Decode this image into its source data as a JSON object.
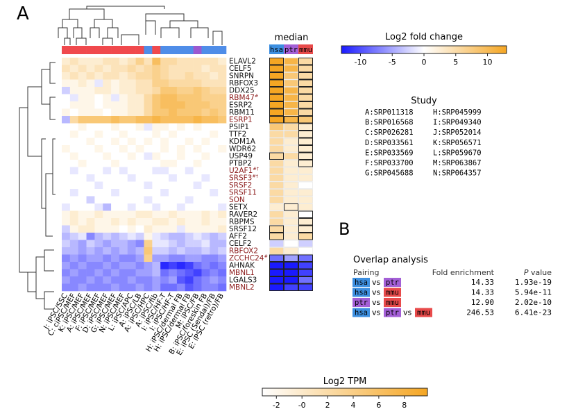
{
  "panel_a_label": "A",
  "panel_b_label": "B",
  "median_title": "median",
  "species": [
    "hsa",
    "ptr",
    "mmu"
  ],
  "species_colors": {
    "hsa": "#3d8fe0",
    "ptr": "#a35fd6",
    "mmu": "#e84a4a"
  },
  "cluster_colors": {
    "red": "#f0494d",
    "blue": "#4f8de8",
    "purple": "#9b59d0"
  },
  "fold_change_legend": {
    "title": "Log2 fold change",
    "ticks": [
      "-10",
      "-5",
      "0",
      "5",
      "10"
    ],
    "colors": [
      "#1a1aff",
      "#ffffff",
      "#f5a623"
    ]
  },
  "tpm_legend": {
    "title": "Log2 TPM",
    "ticks": [
      "-2",
      "-0",
      "2",
      "4",
      "6",
      "8"
    ],
    "colors": [
      "#ffffff",
      "#f5a623"
    ]
  },
  "study": {
    "title": "Study",
    "entries": [
      "A:SRP011318",
      "H:SRP045999",
      "B:SRP016568",
      "I:SRP049340",
      "C:SRP026281",
      "J:SRP052014",
      "D:SRP033561",
      "K:SRP056571",
      "E:SRP033569",
      "L:SRP059670",
      "F:SRP033700",
      "M:SRP063867",
      "G:SRP045688",
      "N:SRP064357"
    ]
  },
  "overlap": {
    "title": "Overlap analysis",
    "col_pairing": "Pairing",
    "col_fold": "Fold enrichment",
    "col_p_italic": "P",
    "col_p_rest": " value",
    "vs": "vs",
    "rows": [
      {
        "pair": [
          "hsa",
          "ptr"
        ],
        "fold": "14.33",
        "p": "1.93e-19"
      },
      {
        "pair": [
          "hsa",
          "mmu"
        ],
        "fold": "14.33",
        "p": "5.94e-11"
      },
      {
        "pair": [
          "ptr",
          "mmu"
        ],
        "fold": "12.90",
        "p": "2.02e-10"
      },
      {
        "pair": [
          "hsa",
          "ptr",
          "mmu"
        ],
        "fold": "246.53",
        "p": "6.41e-23"
      }
    ]
  },
  "chart_data": {
    "type": "heatmap",
    "genes": [
      {
        "name": "ELAVL2",
        "sup": "",
        "red": false
      },
      {
        "name": "CELF5",
        "sup": "",
        "red": false
      },
      {
        "name": "SNRPN",
        "sup": "",
        "red": false
      },
      {
        "name": "RBFOX3",
        "sup": "",
        "red": false
      },
      {
        "name": "DDX25",
        "sup": "",
        "red": false
      },
      {
        "name": "RBM47",
        "sup": "#",
        "red": true
      },
      {
        "name": "ESRP2",
        "sup": "",
        "red": false
      },
      {
        "name": "RBM11",
        "sup": "",
        "red": false
      },
      {
        "name": "ESRP1",
        "sup": "",
        "red": true
      },
      {
        "name": "PSIP1",
        "sup": "",
        "red": false
      },
      {
        "name": "TTF2",
        "sup": "",
        "red": false
      },
      {
        "name": "KDM1A",
        "sup": "",
        "red": false
      },
      {
        "name": "WDR62",
        "sup": "",
        "red": false
      },
      {
        "name": "USP49",
        "sup": "",
        "red": false
      },
      {
        "name": "PTBP2",
        "sup": "",
        "red": false
      },
      {
        "name": "U2AF1",
        "sup": "#†",
        "red": true
      },
      {
        "name": "SRSF3",
        "sup": "#†",
        "red": true
      },
      {
        "name": "SRSF2",
        "sup": "",
        "red": true
      },
      {
        "name": "SRSF11",
        "sup": "",
        "red": true
      },
      {
        "name": "SON",
        "sup": "",
        "red": true
      },
      {
        "name": "SETX",
        "sup": "",
        "red": false
      },
      {
        "name": "RAVER2",
        "sup": "",
        "red": false
      },
      {
        "name": "RBPMS",
        "sup": "",
        "red": false
      },
      {
        "name": "SRSF12",
        "sup": "",
        "red": false
      },
      {
        "name": "AFF2",
        "sup": "",
        "red": false
      },
      {
        "name": "CELF2",
        "sup": "",
        "red": false
      },
      {
        "name": "RBFOX2",
        "sup": "",
        "red": true
      },
      {
        "name": "ZCCHC24",
        "sup": "#",
        "red": true
      },
      {
        "name": "AHNAK",
        "sup": "",
        "red": false
      },
      {
        "name": "MBNL1",
        "sup": "",
        "red": true
      },
      {
        "name": "LGALS3",
        "sup": "",
        "red": false
      },
      {
        "name": "MBNL2",
        "sup": "",
        "red": true
      }
    ],
    "samples": [
      {
        "label": "J: iPSC/SSC",
        "group": "red"
      },
      {
        "label": "C: ciPSC/MEF",
        "group": "red"
      },
      {
        "label": "K: iPSC/MEF",
        "group": "red"
      },
      {
        "label": "A: iPSC/MEF",
        "group": "red"
      },
      {
        "label": "F: iPSC/MEF",
        "group": "red"
      },
      {
        "label": "D: iPSC/MEF",
        "group": "red"
      },
      {
        "label": "G: iPSC/MEF",
        "group": "red"
      },
      {
        "label": "N: iPSC/MEF",
        "group": "red"
      },
      {
        "label": "L: iPSC/APC",
        "group": "red"
      },
      {
        "label": "A: iPSC/LB",
        "group": "red"
      },
      {
        "label": "A: iPSC/HPC",
        "group": "blue"
      },
      {
        "label": "A: iPSC/fib",
        "group": "red"
      },
      {
        "label": "I: iPSC/HF-T",
        "group": "blue"
      },
      {
        "label": "I: iPSC/HF-T",
        "group": "blue"
      },
      {
        "label": "H: iPSC/dermal FB",
        "group": "blue"
      },
      {
        "label": "H: iPSC/dermal FB",
        "group": "blue"
      },
      {
        "label": "M: iPSC/FB",
        "group": "purple"
      },
      {
        "label": "B: iPSC/foreskin FB",
        "group": "blue"
      },
      {
        "label": "E: iPSC (Sendai)/FB",
        "group": "blue"
      },
      {
        "label": "E: iPSC (retro)/FB",
        "group": "blue"
      }
    ],
    "values": [
      [
        2,
        3,
        2,
        2,
        2,
        3,
        3,
        2,
        3,
        5,
        3,
        7,
        4,
        4,
        3,
        3,
        3,
        3,
        3,
        2
      ],
      [
        3,
        2,
        3,
        2,
        3,
        2,
        3,
        3,
        4,
        3,
        4,
        5,
        4,
        3,
        3,
        3,
        3,
        2,
        3,
        3
      ],
      [
        2,
        3,
        2,
        3,
        2,
        3,
        3,
        2,
        3,
        4,
        4,
        5,
        4,
        3,
        3,
        4,
        3,
        3,
        2,
        3
      ],
      [
        1,
        1,
        2,
        1,
        -1,
        2,
        1,
        2,
        2,
        3,
        3,
        5,
        5,
        4,
        4,
        4,
        4,
        3,
        3,
        3
      ],
      [
        -2,
        1,
        1,
        1,
        2,
        2,
        1,
        2,
        2,
        3,
        3,
        4,
        6,
        6,
        5,
        5,
        6,
        5,
        4,
        4
      ],
      [
        0,
        -1,
        1,
        1,
        0,
        1,
        -1,
        1,
        2,
        2,
        4,
        6,
        7,
        7,
        6,
        6,
        6,
        5,
        5,
        5
      ],
      [
        0,
        1,
        1,
        1,
        0,
        1,
        1,
        1,
        2,
        2,
        4,
        6,
        7,
        7,
        7,
        6,
        6,
        6,
        5,
        5
      ],
      [
        1,
        0,
        1,
        1,
        1,
        0,
        1,
        1,
        2,
        2,
        4,
        6,
        6,
        7,
        6,
        6,
        6,
        5,
        6,
        5
      ],
      [
        -3,
        4,
        6,
        6,
        6,
        6,
        7,
        6,
        6,
        7,
        7,
        8,
        7,
        7,
        7,
        7,
        8,
        7,
        7,
        6
      ],
      [
        0,
        0,
        1,
        0,
        0,
        0,
        1,
        0,
        0,
        1,
        -1,
        1,
        1,
        0,
        1,
        0,
        1,
        0,
        0,
        0
      ],
      [
        0,
        1,
        0,
        0,
        1,
        0,
        0,
        1,
        0,
        0,
        0,
        1,
        0,
        1,
        0,
        0,
        0,
        0,
        1,
        0
      ],
      [
        0,
        0,
        0,
        1,
        0,
        0,
        1,
        0,
        1,
        0,
        1,
        0,
        1,
        0,
        0,
        1,
        0,
        1,
        0,
        0
      ],
      [
        1,
        0,
        0,
        0,
        1,
        0,
        0,
        1,
        0,
        1,
        0,
        0,
        1,
        0,
        1,
        0,
        1,
        0,
        0,
        1
      ],
      [
        0,
        1,
        0,
        0,
        0,
        1,
        0,
        0,
        1,
        0,
        -1,
        1,
        0,
        0,
        1,
        0,
        0,
        1,
        0,
        0
      ],
      [
        0,
        0,
        1,
        0,
        0,
        0,
        1,
        0,
        0,
        0,
        0,
        0,
        1,
        1,
        0,
        0,
        1,
        0,
        0,
        0
      ],
      [
        0,
        -1,
        0,
        0,
        0,
        -1,
        0,
        -1,
        0,
        0,
        0,
        -1,
        -1,
        0,
        0,
        -1,
        0,
        0,
        0,
        0
      ],
      [
        0,
        0,
        0,
        -1,
        0,
        0,
        0,
        0,
        -1,
        0,
        0,
        0,
        0,
        -1,
        0,
        0,
        0,
        -1,
        0,
        0
      ],
      [
        0,
        0,
        0,
        0,
        -1,
        0,
        0,
        0,
        0,
        0,
        -1,
        0,
        0,
        0,
        0,
        0,
        -1,
        0,
        0,
        0
      ],
      [
        0,
        -1,
        0,
        0,
        0,
        0,
        -1,
        0,
        0,
        0,
        0,
        0,
        -1,
        0,
        0,
        0,
        0,
        0,
        -1,
        0
      ],
      [
        0,
        0,
        0,
        -2,
        0,
        0,
        0,
        0,
        0,
        0,
        -1,
        0,
        0,
        0,
        0,
        -1,
        0,
        0,
        0,
        0
      ],
      [
        -1,
        0,
        0,
        0,
        -1,
        -3,
        0,
        0,
        -1,
        0,
        0,
        -1,
        0,
        0,
        -1,
        0,
        0,
        0,
        0,
        -1
      ],
      [
        1,
        2,
        1,
        1,
        2,
        1,
        1,
        1,
        1,
        2,
        2,
        1,
        1,
        2,
        1,
        1,
        1,
        2,
        1,
        2
      ],
      [
        1,
        2,
        1,
        2,
        1,
        1,
        2,
        1,
        2,
        1,
        1,
        2,
        2,
        1,
        2,
        1,
        1,
        2,
        1,
        1
      ],
      [
        -2,
        1,
        2,
        2,
        1,
        1,
        1,
        0,
        1,
        0,
        2,
        1,
        1,
        1,
        -1,
        1,
        1,
        1,
        1,
        2
      ],
      [
        -3,
        -2,
        -1,
        -5,
        -3,
        -2,
        -3,
        -2,
        -1,
        -2,
        1,
        -1,
        -2,
        -3,
        -3,
        -2,
        -1,
        -2,
        -3,
        -2
      ],
      [
        -2,
        -3,
        -4,
        -2,
        -3,
        -4,
        -3,
        -3,
        -4,
        -5,
        5,
        -1,
        -1,
        -2,
        -3,
        -2,
        -2,
        -1,
        -3,
        -3
      ],
      [
        -3,
        -3,
        -4,
        -3,
        -4,
        -3,
        -4,
        -3,
        -4,
        -3,
        6,
        -2,
        -2,
        -3,
        -2,
        -3,
        -3,
        -2,
        -3,
        -2
      ],
      [
        -5,
        -4,
        -5,
        -4,
        -4,
        -5,
        -4,
        -5,
        -5,
        -4,
        5,
        -4,
        -4,
        -5,
        -5,
        -4,
        -4,
        -5,
        -5,
        -4
      ],
      [
        -4,
        -5,
        -4,
        -5,
        -5,
        -4,
        -5,
        -4,
        -4,
        -5,
        -4,
        -3,
        -9,
        -8,
        -9,
        -8,
        -6,
        -5,
        -6,
        -5
      ],
      [
        -5,
        -4,
        -5,
        -5,
        -4,
        -5,
        -4,
        -5,
        -5,
        -4,
        -4,
        -3,
        -6,
        -5,
        -6,
        -7,
        -8,
        -6,
        -5,
        -6
      ],
      [
        -4,
        -5,
        -5,
        -4,
        -5,
        -4,
        -5,
        -5,
        -4,
        -5,
        -5,
        -4,
        -5,
        -4,
        -7,
        -8,
        -6,
        -5,
        -4,
        -5
      ],
      [
        -5,
        -5,
        -4,
        -5,
        -5,
        -5,
        -4,
        -5,
        -5,
        -4,
        -5,
        -4,
        -6,
        -6,
        -5,
        -7,
        -6,
        -5,
        -5,
        -6
      ]
    ],
    "median": [
      [
        6,
        4,
        2
      ],
      [
        5,
        4,
        2
      ],
      [
        5,
        3,
        2
      ],
      [
        6,
        3,
        2
      ],
      [
        6,
        4,
        2
      ],
      [
        5,
        4,
        2
      ],
      [
        6,
        4,
        2
      ],
      [
        6,
        4,
        2
      ],
      [
        5,
        4,
        3
      ],
      [
        3,
        2,
        1
      ],
      [
        2,
        2,
        1
      ],
      [
        2,
        1,
        1
      ],
      [
        2,
        1,
        1
      ],
      [
        2,
        2,
        1
      ],
      [
        2,
        1,
        1
      ],
      [
        2,
        1,
        1
      ],
      [
        2,
        1,
        1
      ],
      [
        2,
        1,
        0
      ],
      [
        2,
        1,
        1
      ],
      [
        2,
        1,
        1
      ],
      [
        1,
        1,
        1
      ],
      [
        2,
        1,
        0
      ],
      [
        2,
        1,
        1
      ],
      [
        2,
        1,
        1
      ],
      [
        2,
        1,
        2
      ],
      [
        -1,
        0,
        -1
      ],
      [
        2,
        1,
        0
      ],
      [
        -3,
        -2,
        -3
      ],
      [
        -6,
        -5,
        -4
      ],
      [
        -6,
        -5,
        -4
      ],
      [
        -7,
        -5,
        -3
      ],
      [
        -6,
        -4,
        -4
      ]
    ],
    "median_outlined": [
      [
        1,
        0,
        1
      ],
      [
        1,
        0,
        1
      ],
      [
        1,
        0,
        1
      ],
      [
        1,
        0,
        1
      ],
      [
        1,
        0,
        1
      ],
      [
        1,
        0,
        1
      ],
      [
        1,
        0,
        1
      ],
      [
        1,
        0,
        1
      ],
      [
        1,
        1,
        1
      ],
      [
        0,
        0,
        1
      ],
      [
        0,
        0,
        1
      ],
      [
        0,
        0,
        1
      ],
      [
        0,
        0,
        1
      ],
      [
        1,
        0,
        1
      ],
      [
        0,
        0,
        1
      ],
      [
        0,
        0,
        0
      ],
      [
        0,
        0,
        0
      ],
      [
        0,
        0,
        0
      ],
      [
        0,
        0,
        0
      ],
      [
        0,
        0,
        0
      ],
      [
        0,
        1,
        0
      ],
      [
        0,
        0,
        1
      ],
      [
        0,
        0,
        1
      ],
      [
        1,
        0,
        1
      ],
      [
        1,
        0,
        1
      ],
      [
        0,
        0,
        0
      ],
      [
        0,
        0,
        0
      ],
      [
        1,
        1,
        1
      ],
      [
        1,
        1,
        1
      ],
      [
        1,
        1,
        1
      ],
      [
        1,
        1,
        1
      ],
      [
        1,
        1,
        1
      ]
    ]
  }
}
